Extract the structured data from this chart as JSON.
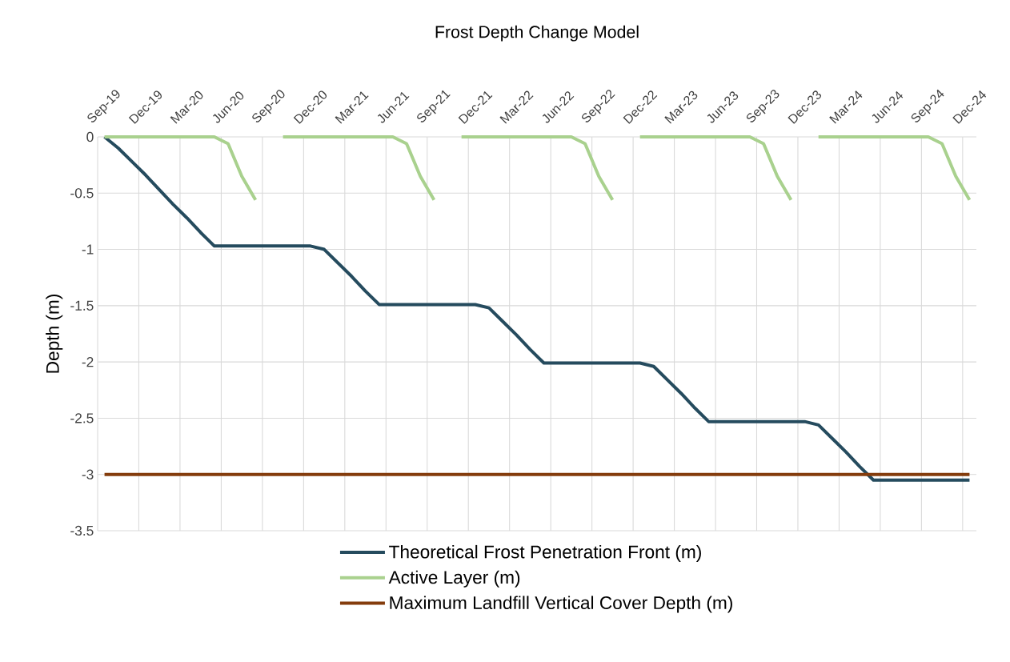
{
  "chart_data": {
    "type": "line",
    "title": "Frost Depth Change Model",
    "ylabel": "Depth (m)",
    "categories": [
      "Sep-19",
      null,
      null,
      "Dec-19",
      null,
      null,
      "Mar-20",
      null,
      null,
      "Jun-20",
      null,
      null,
      "Sep-20",
      null,
      null,
      "Dec-20",
      null,
      null,
      "Mar-21",
      null,
      null,
      "Jun-21",
      null,
      null,
      "Sep-21",
      null,
      null,
      "Dec-21",
      null,
      null,
      "Mar-22",
      null,
      null,
      "Jun-22",
      null,
      null,
      "Sep-22",
      null,
      null,
      "Dec-22",
      null,
      null,
      "Mar-23",
      null,
      null,
      "Jun-23",
      null,
      null,
      "Sep-23",
      null,
      null,
      "Dec-23",
      null,
      null,
      "Mar-24",
      null,
      null,
      "Jun-24",
      null,
      null,
      "Sep-24",
      null,
      null,
      "Dec-24"
    ],
    "series": [
      {
        "name": "Theoretical Frost Penetration Front (m)",
        "color": "#254b5e",
        "values": [
          0,
          -0.1,
          -0.22,
          -0.34,
          -0.47,
          -0.6,
          -0.72,
          -0.85,
          -0.97,
          -0.97,
          -0.97,
          -0.97,
          -0.97,
          -0.97,
          -0.97,
          -0.97,
          -1.0,
          -1.12,
          -1.24,
          -1.37,
          -1.49,
          -1.49,
          -1.49,
          -1.49,
          -1.49,
          -1.49,
          -1.49,
          -1.49,
          -1.52,
          -1.64,
          -1.76,
          -1.89,
          -2.01,
          -2.01,
          -2.01,
          -2.01,
          -2.01,
          -2.01,
          -2.01,
          -2.01,
          -2.04,
          -2.16,
          -2.28,
          -2.41,
          -2.53,
          -2.53,
          -2.53,
          -2.53,
          -2.53,
          -2.53,
          -2.53,
          -2.53,
          -2.56,
          -2.68,
          -2.8,
          -2.93,
          -3.05,
          -3.05,
          -3.05,
          -3.05,
          -3.05,
          -3.05,
          -3.05,
          -3.05
        ]
      },
      {
        "name": "Active Layer (m)",
        "color": "#a9d18e",
        "values": [
          0,
          0,
          0,
          0,
          0,
          0,
          0,
          0,
          0,
          -0.06,
          -0.35,
          -0.56,
          null,
          0,
          0,
          0,
          0,
          0,
          0,
          0,
          0,
          0,
          -0.06,
          -0.35,
          -0.56,
          null,
          0,
          0,
          0,
          0,
          0,
          0,
          0,
          0,
          0,
          -0.06,
          -0.35,
          -0.56,
          null,
          0,
          0,
          0,
          0,
          0,
          0,
          0,
          0,
          0,
          -0.06,
          -0.35,
          -0.56,
          null,
          0,
          0,
          0,
          0,
          0,
          0,
          0,
          0,
          0,
          -0.06,
          -0.35,
          -0.56
        ]
      },
      {
        "name": "Maximum Landfill Vertical Cover Depth (m)",
        "color": "#843c0c",
        "values": [
          -3,
          -3,
          -3,
          -3,
          -3,
          -3,
          -3,
          -3,
          -3,
          -3,
          -3,
          -3,
          -3,
          -3,
          -3,
          -3,
          -3,
          -3,
          -3,
          -3,
          -3,
          -3,
          -3,
          -3,
          -3,
          -3,
          -3,
          -3,
          -3,
          -3,
          -3,
          -3,
          -3,
          -3,
          -3,
          -3,
          -3,
          -3,
          -3,
          -3,
          -3,
          -3,
          -3,
          -3,
          -3,
          -3,
          -3,
          -3,
          -3,
          -3,
          -3,
          -3,
          -3,
          -3,
          -3,
          -3,
          -3,
          -3,
          -3,
          -3,
          -3,
          -3,
          -3,
          -3
        ]
      }
    ],
    "ylim": [
      -3.5,
      0
    ],
    "yticks": [
      0,
      -0.5,
      -1,
      -1.5,
      -2,
      -2.5,
      -3,
      -3.5
    ],
    "grid": true,
    "legend": "bottom"
  }
}
